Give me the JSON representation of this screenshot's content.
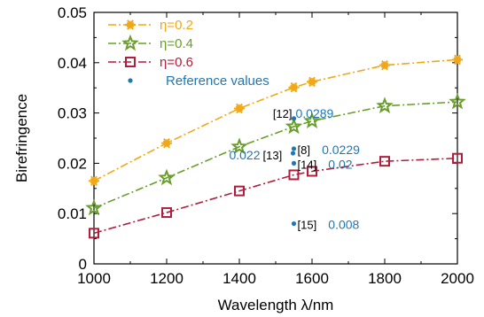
{
  "chart_data": {
    "type": "line",
    "xlabel": "Wavelength λ/nm",
    "ylabel": "Birefringence",
    "xlim": [
      1000,
      2000
    ],
    "ylim": [
      0,
      0.05
    ],
    "xticks": [
      1000,
      1200,
      1400,
      1600,
      1800,
      2000
    ],
    "yticks": [
      0,
      0.01,
      0.02,
      0.03,
      0.04,
      0.05
    ],
    "ytick_labels": [
      "0",
      "0.01",
      "0.02",
      "0.03",
      "0.04",
      "0.05"
    ],
    "grid": false,
    "legend_position": "top-left",
    "series": [
      {
        "name": "η=0.2",
        "color": "#f0a818",
        "marker": "asterisk",
        "line_style": "dash-dot",
        "x": [
          1000,
          1200,
          1400,
          1550,
          1600,
          1800,
          2000
        ],
        "y": [
          0.0165,
          0.024,
          0.0309,
          0.0351,
          0.0362,
          0.0395,
          0.0406
        ]
      },
      {
        "name": "η=0.4",
        "color": "#6a9e2c",
        "marker": "star",
        "line_style": "dash-dot",
        "x": [
          1000,
          1200,
          1400,
          1550,
          1600,
          1800,
          2000
        ],
        "y": [
          0.0111,
          0.0171,
          0.0233,
          0.0273,
          0.0284,
          0.0314,
          0.0322
        ]
      },
      {
        "name": "η=0.6",
        "color": "#b01e3c",
        "marker": "square",
        "line_style": "dash-dot",
        "x": [
          1000,
          1200,
          1400,
          1550,
          1600,
          1800,
          2000
        ],
        "y": [
          0.0061,
          0.0102,
          0.0145,
          0.0177,
          0.0184,
          0.0204,
          0.021
        ]
      }
    ],
    "reference": {
      "name": "Reference values",
      "color": "#1f77b4",
      "marker": "dot",
      "x": [
        1550,
        1550,
        1550,
        1550,
        1550
      ],
      "y": [
        0.0289,
        0.0229,
        0.022,
        0.02,
        0.008
      ]
    },
    "annotations": [
      {
        "ref": "[12]",
        "value": "0.0289",
        "x": 1550,
        "y": 0.0289,
        "side": "both"
      },
      {
        "ref": "[8]",
        "value": "0.0229",
        "x": 1550,
        "y": 0.0229,
        "side": "right"
      },
      {
        "ref": "[13]",
        "value": "0.022",
        "x": 1550,
        "y": 0.022,
        "side": "left"
      },
      {
        "ref": "[14]",
        "value": "0.02",
        "x": 1550,
        "y": 0.02,
        "side": "right"
      },
      {
        "ref": "[15]",
        "value": "0.008",
        "x": 1550,
        "y": 0.008,
        "side": "right"
      }
    ]
  }
}
